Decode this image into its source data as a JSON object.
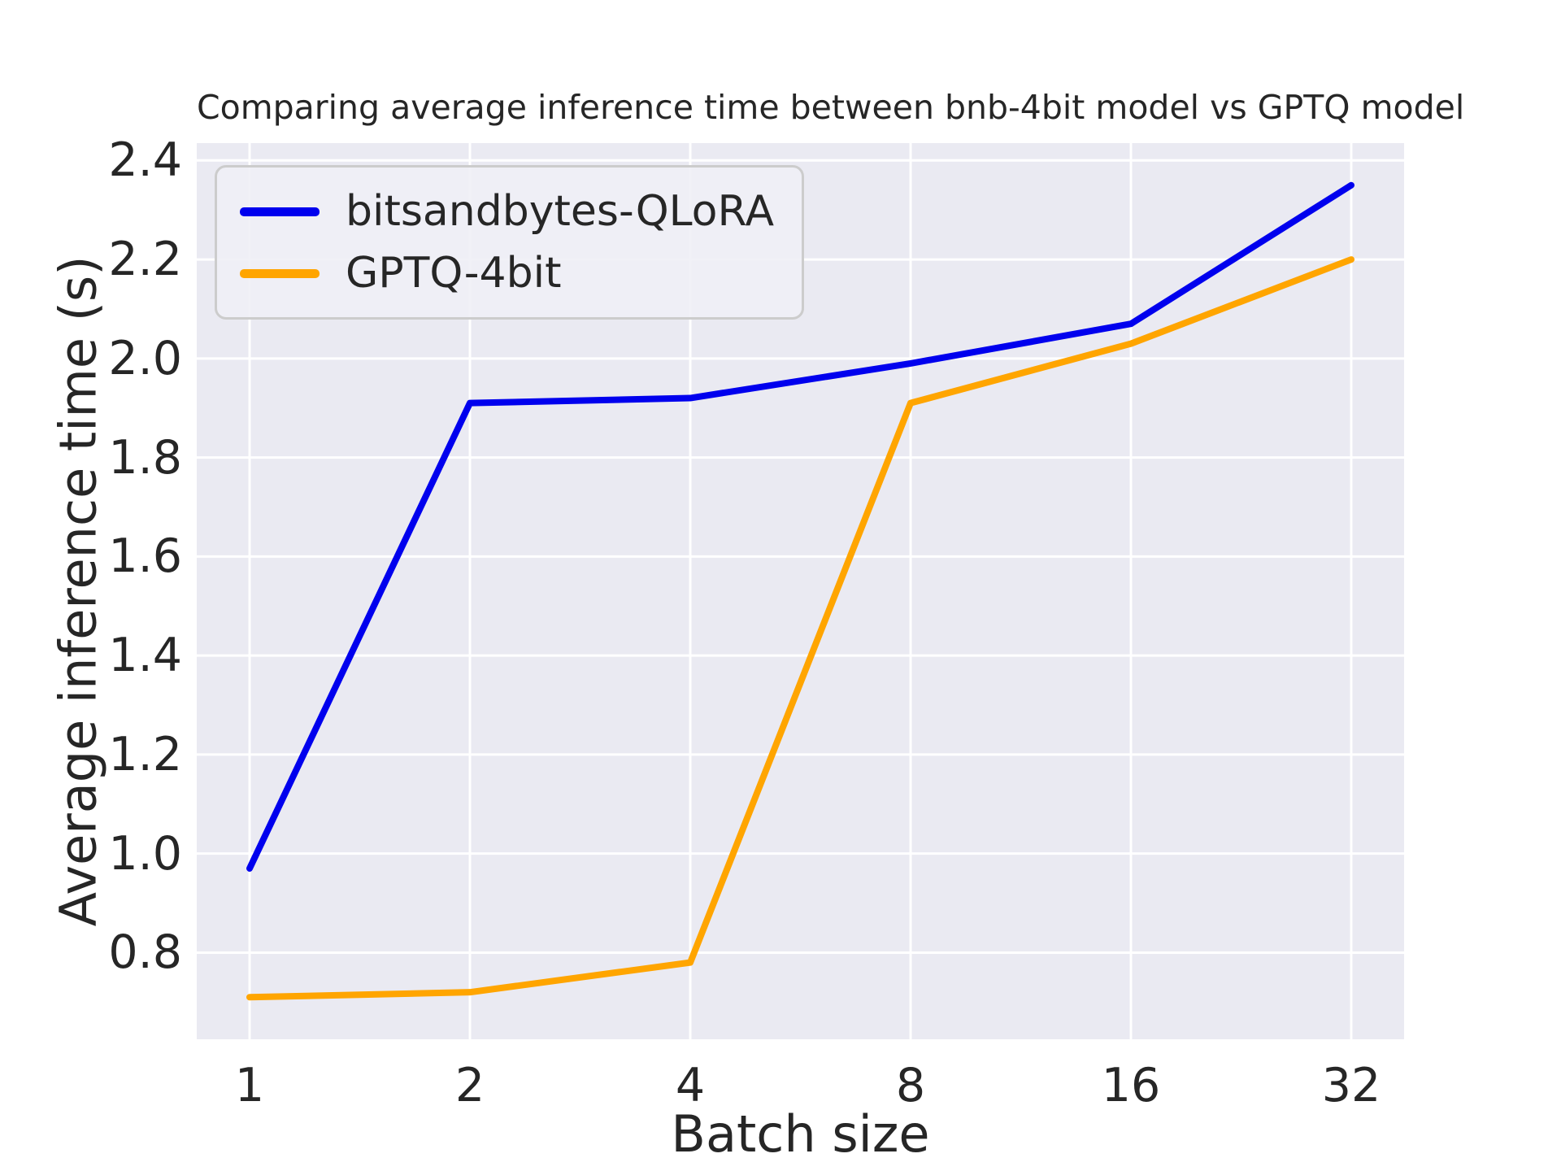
{
  "chart_data": {
    "type": "line",
    "title": "Comparing average inference time between bnb-4bit model vs GPTQ model",
    "xlabel": "Batch size",
    "ylabel": "Average inference time (s)",
    "categories": [
      1,
      2,
      4,
      8,
      16,
      32
    ],
    "xtick_labels": [
      "1",
      "2",
      "4",
      "8",
      "16",
      "32"
    ],
    "x_scale": "log2-evenly-spaced-categories",
    "series": [
      {
        "name": "bitsandbytes-QLoRA",
        "color": "#0000ee",
        "values": [
          0.97,
          1.91,
          1.92,
          1.99,
          2.07,
          2.35
        ]
      },
      {
        "name": "GPTQ-4bit",
        "color": "#ffa500",
        "values": [
          0.71,
          0.72,
          0.78,
          1.91,
          2.03,
          2.2
        ]
      }
    ],
    "yticks": [
      0.8,
      1.0,
      1.2,
      1.4,
      1.6,
      1.8,
      2.0,
      2.2,
      2.4
    ],
    "ytick_labels": [
      "0.8",
      "1.0",
      "1.2",
      "1.4",
      "1.6",
      "1.8",
      "2.0",
      "2.2",
      "2.4"
    ],
    "ylim": [
      0.625,
      2.435
    ],
    "grid": true,
    "grid_color": "#ffffff",
    "plot_background": "#eaeaf2",
    "text_color": "#262626",
    "legend_position": "upper-left",
    "line_width": 8
  }
}
